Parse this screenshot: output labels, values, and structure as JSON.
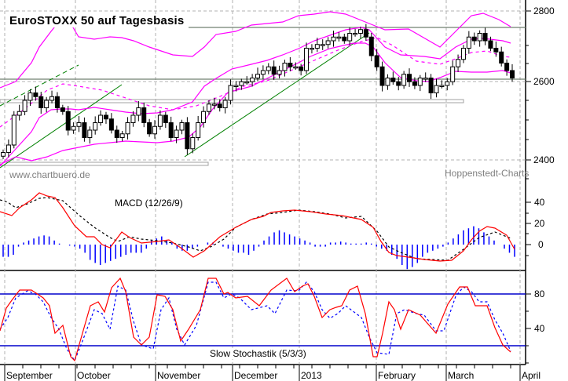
{
  "chart_data": [
    {
      "type": "candlestick",
      "title": "EuroSTOXX 50 auf Tagesbasis",
      "ylabel": "",
      "ylim": [
        2360,
        2830
      ],
      "yticks": [
        2400,
        2600,
        2800
      ],
      "xlabel": "",
      "x_month_labels": [
        "September",
        "October",
        "November",
        "December",
        "2013",
        "February",
        "March",
        "April"
      ],
      "overlays": [
        "Bollinger Bands (upper, middle, lower)",
        "Linear trend lines (green)",
        "Horizontal resistance lines"
      ],
      "horizontal_lines": [
        2750,
        2610
      ],
      "approx_close_series": [
        2420,
        2440,
        2520,
        2530,
        2560,
        2580,
        2570,
        2540,
        2560,
        2570,
        2540,
        2530,
        2480,
        2490,
        2500,
        2460,
        2480,
        2500,
        2520,
        2510,
        2480,
        2460,
        2470,
        2500,
        2520,
        2540,
        2500,
        2470,
        2490,
        2520,
        2500,
        2460,
        2480,
        2500,
        2430,
        2460,
        2500,
        2530,
        2550,
        2550,
        2540,
        2560,
        2600,
        2600,
        2610,
        2610,
        2620,
        2630,
        2640,
        2650,
        2630,
        2640,
        2660,
        2650,
        2650,
        2640,
        2700,
        2700,
        2710,
        2710,
        2720,
        2730,
        2730,
        2720,
        2740,
        2740,
        2750,
        2730,
        2680,
        2650,
        2600,
        2620,
        2610,
        2600,
        2630,
        2610,
        2600,
        2620,
        2620,
        2580,
        2600,
        2600,
        2610,
        2650,
        2670,
        2700,
        2730,
        2720,
        2740,
        2720,
        2700,
        2690,
        2660,
        2640,
        2620
      ],
      "annotations": [
        "www.chartbuero.de",
        "Hoppenstedt-Charts"
      ]
    },
    {
      "type": "line+bar",
      "title": "MACD (12/26/9)",
      "yticks": [
        0,
        20,
        40
      ],
      "ylim": [
        -25,
        50
      ],
      "series": [
        {
          "name": "MACD",
          "color": "#ff0000",
          "style": "solid"
        },
        {
          "name": "Signal",
          "color": "#000000",
          "style": "dashed"
        },
        {
          "name": "Histogram",
          "color": "#0000ff",
          "style": "bars"
        }
      ]
    },
    {
      "type": "line",
      "title": "Slow Stochastik (5/3/3)",
      "yticks": [
        40,
        80
      ],
      "ylim": [
        0,
        100
      ],
      "reference_lines": [
        80,
        20
      ],
      "series": [
        {
          "name": "%K",
          "color": "#ff0000",
          "style": "solid"
        },
        {
          "name": "%D",
          "color": "#0000ff",
          "style": "dashed"
        }
      ]
    }
  ],
  "labels": {
    "title": "EuroSTOXX 50 auf Tagesbasis",
    "watermark_left": "www.chartbuero.de",
    "watermark_right": "Hoppenstedt-Charts",
    "macd_label": "MACD (12/26/9)",
    "stoch_label": "Slow Stochastik (5/3/3)",
    "price_ticks": [
      "2800",
      "2600",
      "2400"
    ],
    "macd_ticks": [
      "40",
      "20",
      "0"
    ],
    "stoch_ticks": [
      "80",
      "40"
    ],
    "months": [
      "September",
      "October",
      "November",
      "December",
      "2013",
      "February",
      "March",
      "April"
    ]
  },
  "colors": {
    "bollinger": "#ff00ff",
    "trend": "#008000",
    "resistance": "#708070",
    "macd": "#ff0000",
    "signal": "#000000",
    "histogram": "#0000ff",
    "stoch_k": "#ff0000",
    "stoch_d": "#0000ff",
    "grid": "#b0b0b0"
  }
}
